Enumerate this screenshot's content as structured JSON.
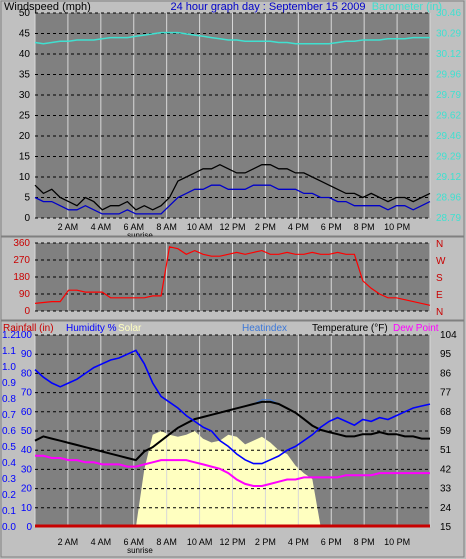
{
  "chart_data": [
    {
      "type": "line",
      "panel": "wind-barometer",
      "header_left": "Windspeed (mph)",
      "title": "24 hour graph day : September 15 2009",
      "header_right": "Barometer (in)",
      "y_left_ticks": [
        "0",
        "5",
        "10",
        "15",
        "20",
        "25",
        "30",
        "35",
        "40",
        "45",
        "50"
      ],
      "y_right_ticks": [
        "28.79",
        "28.96",
        "29.12",
        "29.29",
        "29.46",
        "29.62",
        "29.79",
        "29.96",
        "30.12",
        "30.29",
        "30.46"
      ],
      "x_ticks": [
        "2 AM",
        "4 AM",
        "6 AM",
        "8 AM",
        "10 AM",
        "12 PM",
        "2 PM",
        "4 PM",
        "6 PM",
        "8 PM",
        "10 PM"
      ],
      "x_note": "sunrise",
      "ylim": [
        0,
        50
      ],
      "y2lim": [
        28.79,
        30.46
      ],
      "grid": true,
      "series": [
        {
          "name": "gust",
          "color": "#000000",
          "values": [
            8,
            6,
            7,
            5,
            4,
            3,
            5,
            4,
            2,
            3,
            3,
            4,
            2,
            3,
            2,
            3,
            5,
            9,
            10,
            11,
            12,
            12,
            13,
            12,
            11,
            11,
            12,
            13,
            13,
            12,
            12,
            11,
            11,
            10,
            9,
            8,
            7,
            6,
            6,
            5,
            6,
            5,
            4,
            5,
            5,
            4,
            5,
            6
          ]
        },
        {
          "name": "average",
          "color": "#0000c8",
          "values": [
            5,
            4,
            4,
            3,
            2,
            2,
            3,
            2,
            1,
            1,
            1,
            2,
            1,
            1,
            1,
            1,
            3,
            5,
            6,
            7,
            7,
            8,
            8,
            7,
            7,
            7,
            8,
            8,
            8,
            7,
            7,
            7,
            6,
            6,
            5,
            5,
            4,
            4,
            3,
            3,
            3,
            3,
            2,
            3,
            3,
            2,
            3,
            4
          ]
        },
        {
          "name": "barometer",
          "color": "#40e0d0",
          "values": [
            30.22,
            30.21,
            30.22,
            30.23,
            30.23,
            30.24,
            30.24,
            30.24,
            30.25,
            30.26,
            30.26,
            30.26,
            30.27,
            30.28,
            30.29,
            30.3,
            30.3,
            30.3,
            30.29,
            30.28,
            30.27,
            30.26,
            30.25,
            30.24,
            30.24,
            30.23,
            30.23,
            30.23,
            30.23,
            30.22,
            30.22,
            30.21,
            30.21,
            30.21,
            30.21,
            30.21,
            30.22,
            30.23,
            30.23,
            30.24,
            30.24,
            30.24,
            30.25,
            30.25,
            30.25,
            30.26,
            30.26,
            30.26
          ]
        }
      ]
    },
    {
      "type": "line",
      "panel": "wind-direction",
      "y_ticks": [
        "0",
        "90",
        "180",
        "270",
        "360"
      ],
      "y_right_labels": [
        "N",
        "W",
        "S",
        "E",
        "N"
      ],
      "ylim": [
        0,
        360
      ],
      "grid": true,
      "series": [
        {
          "name": "direction",
          "color": "#ff0000",
          "values": [
            40,
            45,
            50,
            50,
            110,
            110,
            100,
            100,
            100,
            70,
            70,
            70,
            70,
            70,
            80,
            80,
            340,
            330,
            300,
            320,
            300,
            290,
            290,
            300,
            310,
            300,
            310,
            320,
            300,
            300,
            310,
            300,
            300,
            310,
            300,
            300,
            310,
            300,
            300,
            160,
            120,
            90,
            70,
            70,
            60,
            50,
            40,
            30
          ]
        }
      ]
    },
    {
      "type": "line",
      "panel": "temp-humidity",
      "header_items": [
        "Rainfall (in)",
        "Humidity %",
        "Solar",
        "Heatindex",
        "Temperature (°F)",
        "Dew Point"
      ],
      "y_left_ticks_outer": [
        "0.0",
        "0.1",
        "0.2",
        "0.3",
        "0.4",
        "0.5",
        "0.6",
        "0.7",
        "0.8",
        "0.9",
        "1.0",
        "1.1",
        "1.2"
      ],
      "y_left_ticks_inner": [
        "0",
        "10",
        "20",
        "30",
        "40",
        "50",
        "60",
        "70",
        "80",
        "90",
        "100"
      ],
      "y_right_ticks": [
        "15",
        "24",
        "33",
        "42",
        "51",
        "59",
        "68",
        "77",
        "86",
        "95",
        "104"
      ],
      "x_ticks": [
        "2 AM",
        "4 AM",
        "6 AM",
        "8 AM",
        "10 AM",
        "12 PM",
        "2 PM",
        "4 PM",
        "6 PM",
        "8 PM",
        "10 PM"
      ],
      "x_note": "sunrise",
      "ylim": [
        0,
        100
      ],
      "y2lim": [
        15,
        104
      ],
      "grid": true,
      "series": [
        {
          "name": "Humidity %",
          "color": "#0000ff",
          "values": [
            82,
            78,
            75,
            73,
            75,
            77,
            80,
            83,
            85,
            87,
            88,
            90,
            92,
            85,
            75,
            68,
            65,
            62,
            58,
            55,
            52,
            50,
            45,
            42,
            38,
            35,
            33,
            33,
            35,
            37,
            40,
            42,
            45,
            48,
            52,
            55,
            57,
            55,
            53,
            56,
            55,
            57,
            56,
            58,
            60,
            62,
            63,
            64
          ]
        },
        {
          "name": "Temperature (°F)",
          "color": "#000000",
          "values": [
            55,
            57,
            56,
            55,
            54,
            53,
            52,
            51,
            50,
            49,
            48,
            47,
            46,
            50,
            52,
            55,
            58,
            61,
            63,
            65,
            66,
            67,
            68,
            69,
            70,
            71,
            72,
            73,
            73,
            72,
            70,
            68,
            65,
            62,
            60,
            59,
            58,
            57,
            57,
            58,
            58,
            59,
            58,
            58,
            57,
            57,
            56,
            56
          ]
        },
        {
          "name": "Dew Point",
          "color": "#ff00ff",
          "values": [
            48,
            48,
            47,
            47,
            46,
            46,
            45,
            45,
            44,
            44,
            44,
            43,
            43,
            44,
            45,
            46,
            46,
            46,
            46,
            45,
            44,
            43,
            42,
            40,
            37,
            35,
            34,
            34,
            35,
            36,
            37,
            37,
            38,
            38,
            38,
            38,
            38,
            39,
            39,
            39,
            39,
            40,
            40,
            40,
            40,
            40,
            40,
            40
          ]
        },
        {
          "name": "Heatindex",
          "color": "#3c78d8",
          "values": [
            55,
            57,
            56,
            55,
            54,
            53,
            52,
            51,
            50,
            49,
            48,
            47,
            46,
            50,
            52,
            55,
            58,
            61,
            63,
            65,
            66,
            67,
            68,
            69,
            70,
            71,
            72,
            74,
            74,
            72,
            70,
            68,
            65,
            62,
            60,
            59,
            58,
            57,
            57,
            58,
            58,
            59,
            58,
            58,
            57,
            57,
            56,
            56
          ]
        },
        {
          "name": "Solar",
          "color": "#ffffc0",
          "values": [
            0,
            0,
            0,
            0,
            0,
            0,
            0,
            0,
            0,
            0,
            0,
            0,
            0,
            30,
            48,
            50,
            48,
            47,
            48,
            50,
            46,
            44,
            45,
            48,
            47,
            43,
            45,
            47,
            44,
            40,
            38,
            32,
            28,
            25,
            0,
            0,
            0,
            0,
            0,
            0,
            0,
            0,
            0,
            0,
            0,
            0,
            0,
            0
          ]
        },
        {
          "name": "Rainfall (in)",
          "color": "#c80000",
          "values": [
            0,
            0,
            0,
            0,
            0,
            0,
            0,
            0,
            0,
            0,
            0,
            0,
            0,
            0,
            0,
            0,
            0,
            0,
            0,
            0,
            0,
            0,
            0,
            0,
            0,
            0,
            0,
            0,
            0,
            0,
            0,
            0,
            0,
            0,
            0,
            0,
            0,
            0,
            0,
            0,
            0,
            0,
            0,
            0,
            0,
            0,
            0,
            0
          ]
        }
      ]
    }
  ]
}
